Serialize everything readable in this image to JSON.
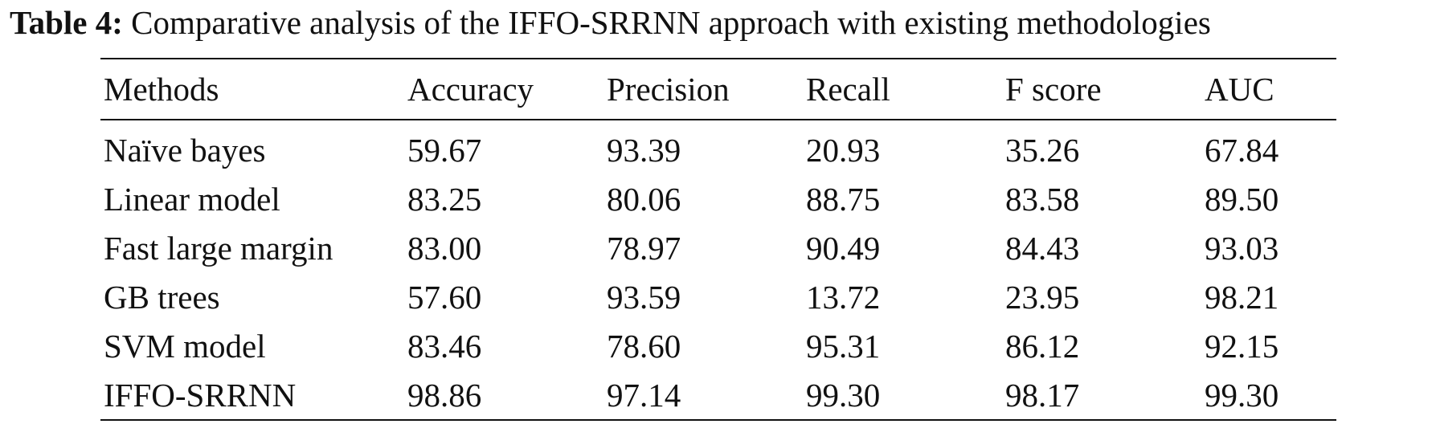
{
  "caption": {
    "label": "Table 4:",
    "text": "Comparative analysis of the IFFO-SRRNN approach with existing methodologies"
  },
  "table": {
    "headers": [
      "Methods",
      "Accuracy",
      "Precision",
      "Recall",
      "F score",
      "AUC"
    ],
    "rows": [
      [
        "Naïve bayes",
        "59.67",
        "93.39",
        "20.93",
        "35.26",
        "67.84"
      ],
      [
        "Linear model",
        "83.25",
        "80.06",
        "88.75",
        "83.58",
        "89.50"
      ],
      [
        "Fast large margin",
        "83.00",
        "78.97",
        "90.49",
        "84.43",
        "93.03"
      ],
      [
        "GB trees",
        "57.60",
        "93.59",
        "13.72",
        "23.95",
        "98.21"
      ],
      [
        "SVM model",
        "83.46",
        "78.60",
        "95.31",
        "86.12",
        "92.15"
      ],
      [
        "IFFO-SRRNN",
        "98.86",
        "97.14",
        "99.30",
        "98.17",
        "99.30"
      ]
    ]
  }
}
